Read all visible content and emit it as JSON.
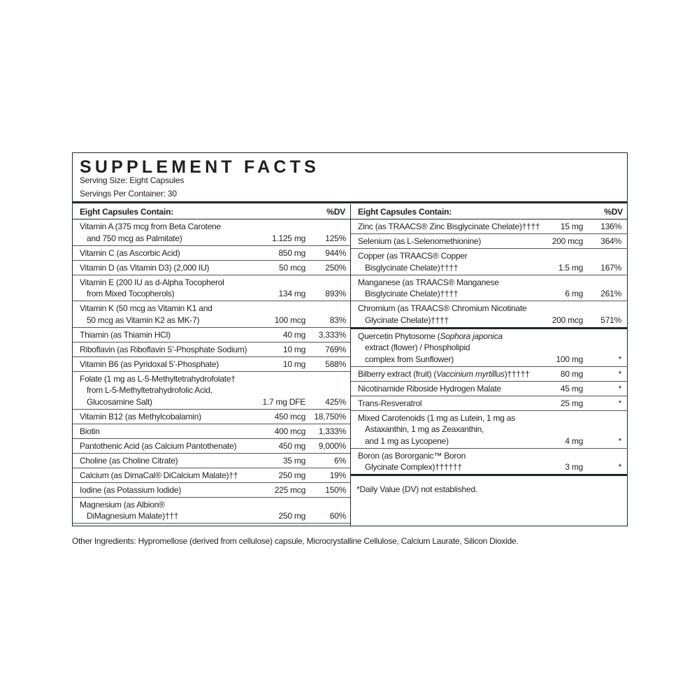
{
  "title": "SUPPLEMENT FACTS",
  "serving_size": "Serving Size: Eight Capsules",
  "servings_per_container": "Servings Per Container: 30",
  "left": {
    "header": "Eight Capsules Contain:",
    "header_dv": "%DV",
    "rows": [
      {
        "lines": [
          "Vitamin A (375 mcg from Beta Carotene",
          "and 750 mcg as Palmitate)"
        ],
        "amount": "1.125 mg",
        "dv": "125%"
      },
      {
        "lines": [
          "Vitamin C (as Ascorbic Acid)"
        ],
        "amount": "850 mg",
        "dv": "944%"
      },
      {
        "lines": [
          "Vitamin D (as Vitamin D3) (2,000 IU)"
        ],
        "amount": "50 mcg",
        "dv": "250%"
      },
      {
        "lines": [
          "Vitamin E (200 IU as d-Alpha Tocopherol",
          "from Mixed Tocopherols)"
        ],
        "amount": "134 mg",
        "dv": "893%"
      },
      {
        "lines": [
          "Vitamin K (50 mcg as Vitamin K1 and",
          "50 mcg as Vitamin K2 as MK-7)"
        ],
        "amount": "100 mcg",
        "dv": "83%"
      },
      {
        "lines": [
          "Thiamin (as Thiamin HCl)"
        ],
        "amount": "40 mg",
        "dv": "3,333%"
      },
      {
        "lines": [
          "Riboflavin (as Riboflavin 5’-Phosphate Sodium)"
        ],
        "amount": "10 mg",
        "dv": "769%"
      },
      {
        "lines": [
          "Vitamin B6 (as Pyridoxal 5’-Phosphate)"
        ],
        "amount": "10 mg",
        "dv": "588%"
      },
      {
        "lines": [
          "Folate (1 mg as L-5-Methyltetrahydrofolate†",
          "from L-5-Methyltetrahydrofolic Acid,",
          "Glucosamine Salt)"
        ],
        "amount": "1.7 mg DFE",
        "dv": "425%"
      },
      {
        "lines": [
          "Vitamin B12 (as Methylcobalamin)"
        ],
        "amount": "450 mcg",
        "dv": "18,750%"
      },
      {
        "lines": [
          "Biotin"
        ],
        "amount": "400 mcg",
        "dv": "1,333%"
      },
      {
        "lines": [
          "Pantothenic Acid (as Calcium Pantothenate)"
        ],
        "amount": "450 mg",
        "dv": "9,000%"
      },
      {
        "lines": [
          "Choline (as Choline Citrate)"
        ],
        "amount": "35 mg",
        "dv": "6%"
      },
      {
        "lines": [
          "Calcium (as DimaCal® DiCalcium Malate)††"
        ],
        "amount": "250 mg",
        "dv": "19%"
      },
      {
        "lines": [
          "Iodine (as Potassium Iodide)"
        ],
        "amount": "225 mcg",
        "dv": "150%"
      },
      {
        "lines": [
          "Magnesium (as Albion®",
          "DiMagnesium Malate)†††"
        ],
        "amount": "250 mg",
        "dv": "60%"
      }
    ]
  },
  "right": {
    "header": "Eight Capsules Contain:",
    "header_dv": "%DV",
    "rows": [
      {
        "lines": [
          "Zinc (as TRAACS® Zinc Bisglycinate Chelate)††††"
        ],
        "amount": "15 mg",
        "dv": "136%"
      },
      {
        "lines": [
          "Selenium (as L-Selenomethionine)"
        ],
        "amount": "200 mcg",
        "dv": "364%"
      },
      {
        "lines": [
          "Copper (as TRAACS® Copper",
          "Bisglycinate Chelate)††††"
        ],
        "amount": "1.5 mg",
        "dv": "167%"
      },
      {
        "lines": [
          "Manganese (as TRAACS® Manganese",
          "Bisglycinate Chelate)††††"
        ],
        "amount": "6 mg",
        "dv": "261%"
      },
      {
        "lines": [
          "Chromium (as TRAACS® Chromium Nicotinate",
          "Glycinate Chelate)††††"
        ],
        "amount": "200 mcg",
        "dv": "571%",
        "thick": true
      },
      {
        "lines": [
          [
            [
              "Quercetin Phytosome (",
              false
            ],
            [
              "Sophora japonica",
              true
            ]
          ],
          "extract (flower) / Phospholipid",
          "complex from Sunflower)"
        ],
        "amount": "100 mg",
        "dv": "*"
      },
      {
        "lines": [
          [
            [
              "Bilberry extract (fruit) (",
              false
            ],
            [
              "Vaccinium myrtillus",
              true
            ],
            [
              ")†††††",
              false
            ]
          ]
        ],
        "amount": "80 mg",
        "dv": "*"
      },
      {
        "lines": [
          "Nicotinamide Riboside Hydrogen Malate"
        ],
        "amount": "45 mg",
        "dv": "*"
      },
      {
        "lines": [
          "Trans-Resveratrol"
        ],
        "amount": "25 mg",
        "dv": "*"
      },
      {
        "lines": [
          "Mixed Carotenoids (1 mg as Lutein, 1 mg as",
          "Astaxanthin, 1 mg as Zeaxanthin,",
          "and 1 mg as Lycopene)"
        ],
        "amount": "4 mg",
        "dv": "*"
      },
      {
        "lines": [
          "Boron (as Bororganic™ Boron",
          "Glycinate Complex)††††††"
        ],
        "amount": "3 mg",
        "dv": "*",
        "thick": true
      }
    ],
    "footnote": "*Daily Value (DV) not established."
  },
  "other_ingredients": "Other Ingredients: Hypromellose (derived from cellulose) capsule, Microcrystalline Cellulose, Calcium Laurate, Silicon Dioxide.",
  "colors": {
    "border": "#1c2a22",
    "text": "#231f20"
  }
}
